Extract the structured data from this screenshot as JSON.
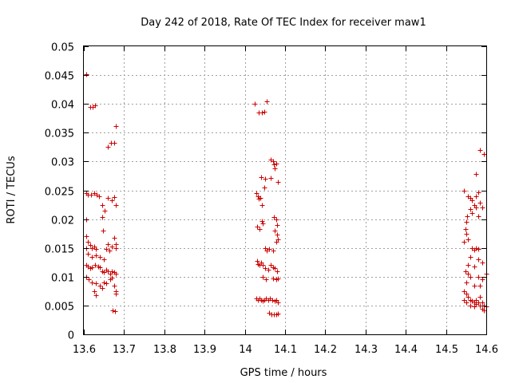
{
  "chart_data": {
    "type": "scatter",
    "title": "Day 242 of 2018, Rate Of TEC Index for receiver maw1",
    "xlabel": "GPS time / hours",
    "ylabel": "ROTI / TECUs",
    "xlim": [
      13.6,
      14.6
    ],
    "ylim": [
      0,
      0.05
    ],
    "xticks": [
      "13.6",
      "13.7",
      "13.8",
      "13.9",
      "14",
      "14.1",
      "14.2",
      "14.3",
      "14.4",
      "14.5",
      "14.6"
    ],
    "yticks": [
      "0",
      "0.005",
      "0.01",
      "0.015",
      "0.02",
      "0.025",
      "0.03",
      "0.035",
      "0.04",
      "0.045",
      "0.05"
    ],
    "grid": true,
    "marker": "+",
    "marker_color": "#cc0000",
    "series": [
      {
        "name": "ROTI",
        "points": [
          [
            13.605,
            0.0452
          ],
          [
            13.615,
            0.0395
          ],
          [
            13.622,
            0.0395
          ],
          [
            13.628,
            0.0397
          ],
          [
            13.66,
            0.0325
          ],
          [
            13.667,
            0.0332
          ],
          [
            13.675,
            0.0332
          ],
          [
            13.68,
            0.0362
          ],
          [
            13.605,
            0.0245
          ],
          [
            13.61,
            0.0243
          ],
          [
            13.618,
            0.0243
          ],
          [
            13.626,
            0.0245
          ],
          [
            13.632,
            0.0243
          ],
          [
            13.638,
            0.024
          ],
          [
            13.645,
            0.0225
          ],
          [
            13.652,
            0.0215
          ],
          [
            13.645,
            0.0203
          ],
          [
            13.66,
            0.0237
          ],
          [
            13.67,
            0.0233
          ],
          [
            13.675,
            0.0238
          ],
          [
            13.68,
            0.0225
          ],
          [
            13.605,
            0.02
          ],
          [
            13.648,
            0.018
          ],
          [
            13.606,
            0.017
          ],
          [
            13.61,
            0.016
          ],
          [
            13.605,
            0.015
          ],
          [
            13.615,
            0.0155
          ],
          [
            13.62,
            0.015
          ],
          [
            13.625,
            0.0153
          ],
          [
            13.63,
            0.0148
          ],
          [
            13.66,
            0.0157
          ],
          [
            13.67,
            0.0153
          ],
          [
            13.675,
            0.0167
          ],
          [
            13.68,
            0.0157
          ],
          [
            13.68,
            0.015
          ],
          [
            13.655,
            0.0148
          ],
          [
            13.663,
            0.0145
          ],
          [
            13.61,
            0.014
          ],
          [
            13.62,
            0.0135
          ],
          [
            13.63,
            0.0137
          ],
          [
            13.64,
            0.0135
          ],
          [
            13.65,
            0.013
          ],
          [
            13.605,
            0.012
          ],
          [
            13.61,
            0.0118
          ],
          [
            13.615,
            0.0115
          ],
          [
            13.62,
            0.0117
          ],
          [
            13.628,
            0.012
          ],
          [
            13.635,
            0.0118
          ],
          [
            13.64,
            0.0116
          ],
          [
            13.645,
            0.011
          ],
          [
            13.65,
            0.0108
          ],
          [
            13.655,
            0.0112
          ],
          [
            13.66,
            0.011
          ],
          [
            13.665,
            0.0105
          ],
          [
            13.67,
            0.011
          ],
          [
            13.675,
            0.0108
          ],
          [
            13.68,
            0.0105
          ],
          [
            13.605,
            0.01
          ],
          [
            13.612,
            0.0095
          ],
          [
            13.62,
            0.009
          ],
          [
            13.63,
            0.0088
          ],
          [
            13.64,
            0.0085
          ],
          [
            13.645,
            0.008
          ],
          [
            13.65,
            0.009
          ],
          [
            13.655,
            0.0088
          ],
          [
            13.665,
            0.0095
          ],
          [
            13.67,
            0.0098
          ],
          [
            13.675,
            0.0085
          ],
          [
            13.68,
            0.0075
          ],
          [
            13.68,
            0.007
          ],
          [
            13.625,
            0.0075
          ],
          [
            13.63,
            0.0068
          ],
          [
            13.672,
            0.0042
          ],
          [
            13.678,
            0.004
          ],
          [
            14.025,
            0.04
          ],
          [
            14.035,
            0.0385
          ],
          [
            14.042,
            0.0385
          ],
          [
            14.048,
            0.0387
          ],
          [
            14.055,
            0.0405
          ],
          [
            14.04,
            0.0273
          ],
          [
            14.05,
            0.027
          ],
          [
            14.048,
            0.0255
          ],
          [
            14.065,
            0.0303
          ],
          [
            14.07,
            0.03
          ],
          [
            14.073,
            0.0295
          ],
          [
            14.078,
            0.0297
          ],
          [
            14.075,
            0.0288
          ],
          [
            14.083,
            0.0265
          ],
          [
            14.065,
            0.0272
          ],
          [
            14.028,
            0.0245
          ],
          [
            14.032,
            0.024
          ],
          [
            14.035,
            0.0235
          ],
          [
            14.038,
            0.0237
          ],
          [
            14.042,
            0.0225
          ],
          [
            14.03,
            0.0187
          ],
          [
            14.036,
            0.0183
          ],
          [
            14.042,
            0.0197
          ],
          [
            14.045,
            0.0193
          ],
          [
            14.072,
            0.0203
          ],
          [
            14.078,
            0.02
          ],
          [
            14.08,
            0.019
          ],
          [
            14.075,
            0.018
          ],
          [
            14.08,
            0.0173
          ],
          [
            14.082,
            0.0165
          ],
          [
            14.078,
            0.016
          ],
          [
            14.05,
            0.015
          ],
          [
            14.055,
            0.0145
          ],
          [
            14.06,
            0.0148
          ],
          [
            14.07,
            0.0145
          ],
          [
            14.03,
            0.0127
          ],
          [
            14.032,
            0.0122
          ],
          [
            14.036,
            0.012
          ],
          [
            14.04,
            0.0125
          ],
          [
            14.045,
            0.012
          ],
          [
            14.05,
            0.0115
          ],
          [
            14.058,
            0.0112
          ],
          [
            14.065,
            0.012
          ],
          [
            14.07,
            0.0117
          ],
          [
            14.075,
            0.0115
          ],
          [
            14.08,
            0.011
          ],
          [
            14.045,
            0.01
          ],
          [
            14.052,
            0.0095
          ],
          [
            14.07,
            0.0097
          ],
          [
            14.078,
            0.0095
          ],
          [
            14.083,
            0.0097
          ],
          [
            14.028,
            0.0063
          ],
          [
            14.032,
            0.006
          ],
          [
            14.036,
            0.0062
          ],
          [
            14.04,
            0.006
          ],
          [
            14.044,
            0.0058
          ],
          [
            14.048,
            0.006
          ],
          [
            14.052,
            0.0062
          ],
          [
            14.058,
            0.006
          ],
          [
            14.063,
            0.0063
          ],
          [
            14.068,
            0.006
          ],
          [
            14.074,
            0.0058
          ],
          [
            14.078,
            0.006
          ],
          [
            14.083,
            0.0055
          ],
          [
            14.06,
            0.0037
          ],
          [
            14.066,
            0.0035
          ],
          [
            14.072,
            0.0035
          ],
          [
            14.078,
            0.0035
          ],
          [
            14.083,
            0.0036
          ],
          [
            14.585,
            0.032
          ],
          [
            14.595,
            0.0313
          ],
          [
            14.575,
            0.0278
          ],
          [
            14.555,
            0.024
          ],
          [
            14.56,
            0.0237
          ],
          [
            14.565,
            0.0233
          ],
          [
            14.575,
            0.024
          ],
          [
            14.58,
            0.0247
          ],
          [
            14.545,
            0.025
          ],
          [
            14.57,
            0.0225
          ],
          [
            14.575,
            0.022
          ],
          [
            14.585,
            0.0228
          ],
          [
            14.59,
            0.022
          ],
          [
            14.56,
            0.0217
          ],
          [
            14.565,
            0.021
          ],
          [
            14.58,
            0.0205
          ],
          [
            14.553,
            0.0205
          ],
          [
            14.55,
            0.0195
          ],
          [
            14.548,
            0.0183
          ],
          [
            14.55,
            0.0175
          ],
          [
            14.545,
            0.016
          ],
          [
            14.555,
            0.0165
          ],
          [
            14.565,
            0.015
          ],
          [
            14.57,
            0.0147
          ],
          [
            14.575,
            0.015
          ],
          [
            14.58,
            0.0148
          ],
          [
            14.56,
            0.0135
          ],
          [
            14.58,
            0.013
          ],
          [
            14.59,
            0.0125
          ],
          [
            14.555,
            0.012
          ],
          [
            14.57,
            0.0118
          ],
          [
            14.6,
            0.0105
          ],
          [
            14.548,
            0.011
          ],
          [
            14.555,
            0.0105
          ],
          [
            14.56,
            0.01
          ],
          [
            14.58,
            0.01
          ],
          [
            14.59,
            0.0095
          ],
          [
            14.585,
            0.0085
          ],
          [
            14.55,
            0.009
          ],
          [
            14.57,
            0.0085
          ],
          [
            14.545,
            0.0075
          ],
          [
            14.55,
            0.007
          ],
          [
            14.555,
            0.0065
          ],
          [
            14.56,
            0.006
          ],
          [
            14.565,
            0.0058
          ],
          [
            14.57,
            0.0055
          ],
          [
            14.575,
            0.0053
          ],
          [
            14.58,
            0.0055
          ],
          [
            14.585,
            0.005
          ],
          [
            14.59,
            0.0055
          ],
          [
            14.595,
            0.005
          ],
          [
            14.6,
            0.0048
          ],
          [
            14.545,
            0.006
          ],
          [
            14.55,
            0.0055
          ],
          [
            14.56,
            0.005
          ],
          [
            14.57,
            0.0048
          ],
          [
            14.575,
            0.006
          ],
          [
            14.585,
            0.0065
          ],
          [
            14.59,
            0.0045
          ],
          [
            14.595,
            0.0042
          ]
        ]
      }
    ]
  }
}
